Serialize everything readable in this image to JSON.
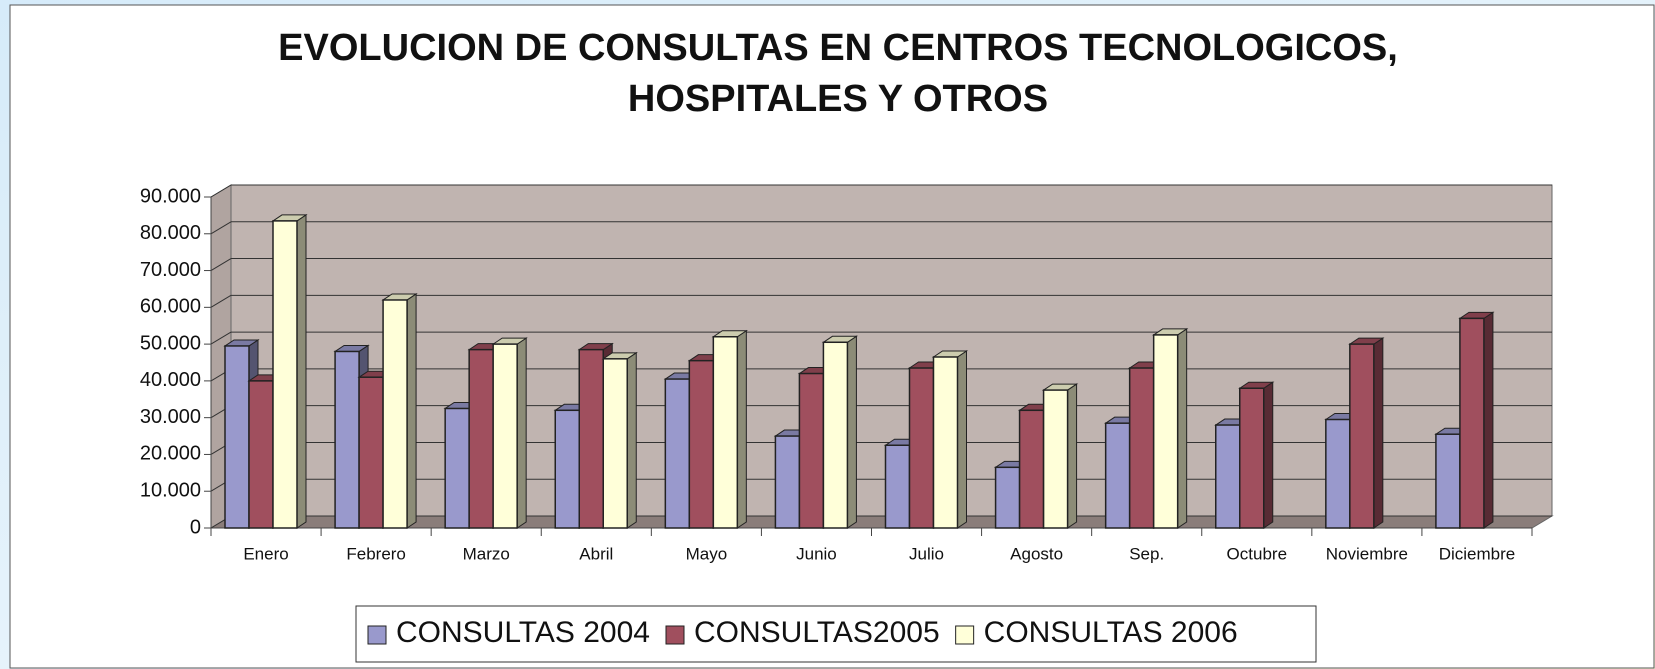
{
  "chart_data": {
    "type": "bar3d",
    "title": [
      "EVOLUCION DE CONSULTAS EN CENTROS TECNOLOGICOS,",
      "HOSPITALES Y OTROS"
    ],
    "categories": [
      "Enero",
      "Febrero",
      "Marzo",
      "Abril",
      "Mayo",
      "Junio",
      "Julio",
      "Agosto",
      "Sep.",
      "Octubre",
      "Noviembre",
      "Diciembre"
    ],
    "series": [
      {
        "name": "CONSULTAS 2004",
        "color": "#9999cc",
        "values": [
          49500,
          48000,
          32500,
          32000,
          40500,
          25000,
          22500,
          16500,
          28500,
          28000,
          29500,
          25500
        ]
      },
      {
        "name": "CONSULTAS2005",
        "color": "#a04f5e",
        "values": [
          40000,
          41000,
          48500,
          48500,
          45500,
          42000,
          43500,
          32000,
          43500,
          38000,
          50000,
          57000
        ]
      },
      {
        "name": "CONSULTAS 2006",
        "color": "#ffffd9",
        "values": [
          83500,
          62000,
          50000,
          46000,
          52000,
          50500,
          46500,
          37500,
          52500,
          null,
          null,
          null
        ]
      }
    ],
    "ylim": [
      0,
      90000
    ],
    "yticks": [
      0,
      {
        "value": 10000,
        "label": "10.000"
      },
      {
        "value": 20000,
        "label": "20.000"
      },
      {
        "value": 30000,
        "label": "30.000"
      },
      {
        "value": 40000,
        "label": "40.000"
      },
      {
        "value": 50000,
        "label": "50.000"
      },
      {
        "value": 60000,
        "label": "60.000"
      },
      {
        "value": 70000,
        "label": "70.000"
      },
      {
        "value": 80000,
        "label": "80.000"
      },
      {
        "value": {
          "value": 90000,
          "label": "90.000"
        }
      }
    ],
    "grid": true,
    "legend": "bottom"
  }
}
